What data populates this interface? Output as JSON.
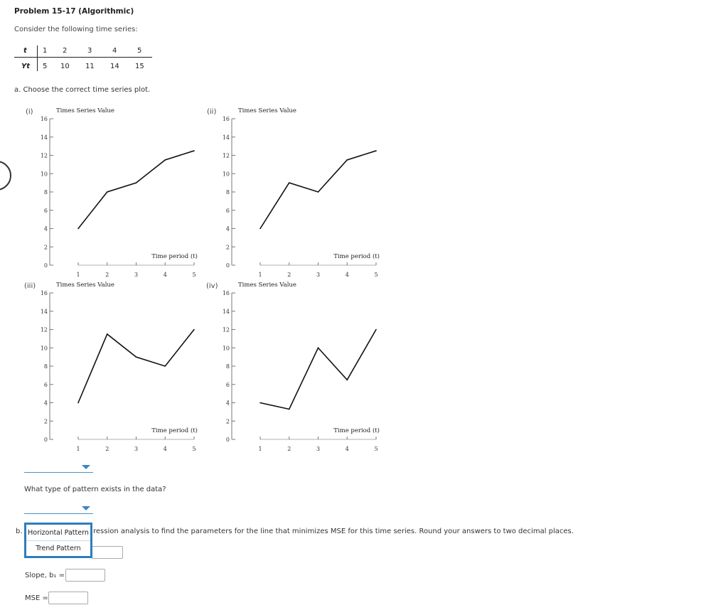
{
  "problem": {
    "title": "Problem 15-17 (Algorithmic)",
    "intro": "Consider the following time series:"
  },
  "table": {
    "t_header": "t",
    "y_header": "Yt",
    "t_values": [
      "1",
      "2",
      "3",
      "4",
      "5"
    ],
    "y_values": [
      "5",
      "10",
      "11",
      "14",
      "15"
    ]
  },
  "question_a": "a. Choose the correct time series plot.",
  "plot_labels": [
    "(i)",
    "(ii)",
    "(iii)",
    "(iv)"
  ],
  "chart_data": [
    {
      "type": "line",
      "label": "(i)",
      "title": "Times Series Value",
      "xlabel": "Time period (t)",
      "x": [
        1,
        2,
        3,
        4,
        5
      ],
      "values": [
        4,
        8,
        9,
        11.5,
        12.5
      ],
      "ylim": [
        0,
        16
      ],
      "yticks": [
        0,
        2,
        4,
        6,
        8,
        10,
        12,
        14,
        16
      ],
      "xticks": [
        1,
        2,
        3,
        4,
        5
      ]
    },
    {
      "type": "line",
      "label": "(ii)",
      "title": "Times Series Value",
      "xlabel": "Time period (t)",
      "x": [
        1,
        2,
        3,
        4,
        5
      ],
      "values": [
        4,
        9,
        8,
        11.5,
        12.5
      ],
      "ylim": [
        0,
        16
      ],
      "yticks": [
        0,
        2,
        4,
        6,
        8,
        10,
        12,
        14,
        16
      ],
      "xticks": [
        1,
        2,
        3,
        4,
        5
      ]
    },
    {
      "type": "line",
      "label": "(iii)",
      "title": "Times Series Value",
      "xlabel": "Time period (t)",
      "x": [
        1,
        2,
        3,
        4,
        5
      ],
      "values": [
        4,
        11.5,
        9,
        8,
        12
      ],
      "ylim": [
        0,
        16
      ],
      "yticks": [
        0,
        2,
        4,
        6,
        8,
        10,
        12,
        14,
        16
      ],
      "xticks": [
        1,
        2,
        3,
        4,
        5
      ]
    },
    {
      "type": "line",
      "label": "(iv)",
      "title": "Times Series Value",
      "xlabel": "Time period (t)",
      "x": [
        1,
        2,
        3,
        4,
        5
      ],
      "values": [
        4,
        3.3,
        10,
        6.5,
        12
      ],
      "ylim": [
        0,
        16
      ],
      "yticks": [
        0,
        2,
        4,
        6,
        8,
        10,
        12,
        14,
        16
      ],
      "xticks": [
        1,
        2,
        3,
        4,
        5
      ]
    }
  ],
  "question_pattern": "What type of pattern exists in the data?",
  "pattern_menu": {
    "options": [
      "Horizontal Pattern",
      "Trend Pattern"
    ]
  },
  "question_b": {
    "label": "b.",
    "text": "ression analysis to find the parameters for the line that minimizes MSE for this time series. Round your answers to two decimal places."
  },
  "answers": {
    "slope_label": "Slope, b₁ =",
    "mse_label": "MSE ="
  },
  "colors": {
    "accent": "#2f7dbd",
    "dropdown_line": "#4a90c8"
  }
}
